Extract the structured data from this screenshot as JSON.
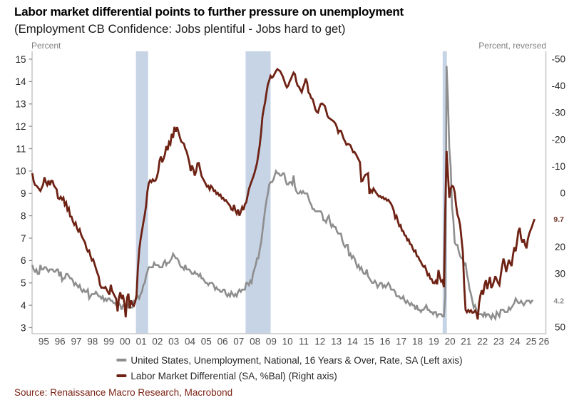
{
  "chart_data": {
    "type": "line",
    "title": "Labor market differential points to further pressure on unemployment",
    "subtitle": "(Employment CB Confidence: Jobs plentiful - Jobs hard to get)",
    "source": "Source: Renaissance Macro Research, Macrobond",
    "background_color": "#ffffff",
    "x_axis": {
      "min": 1994.78,
      "max": 2026.4,
      "label_years": [
        1995,
        1996,
        1997,
        1998,
        1999,
        2000,
        2001,
        2002,
        2003,
        2004,
        2005,
        2006,
        2007,
        2008,
        2009,
        2010,
        2011,
        2012,
        2013,
        2014,
        2015,
        2016,
        2017,
        2018,
        2019,
        2020,
        2021,
        2022,
        2023,
        2024,
        2025,
        2026
      ],
      "year_label_format": "YY",
      "label_color": "#4d4d4d"
    },
    "left_axis": {
      "title": "Percent",
      "min": 2.729,
      "max": 15.351,
      "ticks": [
        3,
        4,
        5,
        6,
        7,
        8,
        9,
        10,
        11,
        12,
        13,
        14,
        15
      ],
      "label_color": "#262626"
    },
    "right_axis": {
      "title": "Percent, reversed",
      "reversed": true,
      "min": -52.84,
      "max": 52.42,
      "ticks": [
        -50,
        -40,
        -30,
        -20,
        -10,
        0,
        20,
        30,
        50
      ],
      "label_color": "#262626"
    },
    "axis_unit_label_color": "#7f7f7f",
    "spine_color": "#c9c9c9",
    "tick_mark_color": "#8c8c8c",
    "recession_bands": [
      {
        "from": 2001.17,
        "to": 2001.92
      },
      {
        "from": 2007.92,
        "to": 2009.46
      },
      {
        "from": 2020.05,
        "to": 2020.31
      }
    ],
    "band_color": "#c6d4e6",
    "series": [
      {
        "name": "United States, Unemployment, National, 16 Years & Over, Rate, SA (Left axis)",
        "axis": "left",
        "color": "#8e8e8e",
        "line_width": 2.6,
        "start_year": 1994,
        "start_month": 10,
        "frequency": "monthly",
        "values": [
          5.8,
          5.6,
          5.5,
          5.6,
          5.4,
          5.4,
          5.8,
          5.6,
          5.6,
          5.7,
          5.7,
          5.6,
          5.5,
          5.6,
          5.6,
          5.6,
          5.5,
          5.5,
          5.6,
          5.6,
          5.3,
          5.5,
          5.1,
          5.2,
          5.2,
          5.4,
          5.4,
          5.3,
          5.2,
          5.2,
          5.1,
          4.9,
          5,
          4.9,
          4.8,
          4.9,
          4.7,
          4.6,
          4.7,
          4.6,
          4.6,
          4.7,
          4.3,
          4.4,
          4.5,
          4.5,
          4.5,
          4.6,
          4.5,
          4.4,
          4.4,
          4.3,
          4.4,
          4.2,
          4.3,
          4.2,
          4.3,
          4.3,
          4.2,
          4.2,
          4.1,
          4.1,
          4,
          4,
          4.1,
          4,
          3.8,
          4,
          4,
          4,
          4.1,
          3.9,
          3.9,
          3.9,
          3.9,
          4.2,
          4.2,
          4.3,
          4.4,
          4.3,
          4.5,
          4.6,
          4.9,
          5,
          5.3,
          5.5,
          5.7,
          5.7,
          5.7,
          5.7,
          5.9,
          5.8,
          5.8,
          5.8,
          5.7,
          5.7,
          5.7,
          5.9,
          6,
          5.8,
          5.9,
          5.9,
          6,
          6.1,
          6.3,
          6.2,
          6.1,
          6.1,
          6,
          5.8,
          5.7,
          5.7,
          5.6,
          5.8,
          5.6,
          5.6,
          5.6,
          5.5,
          5.4,
          5.4,
          5.5,
          5.4,
          5.4,
          5.3,
          5.4,
          5.2,
          5.2,
          5.1,
          5,
          5,
          4.9,
          5,
          5,
          5,
          4.9,
          4.7,
          4.8,
          4.7,
          4.7,
          4.6,
          4.6,
          4.7,
          4.7,
          4.5,
          4.4,
          4.5,
          4.4,
          4.6,
          4.5,
          4.4,
          4.5,
          4.4,
          4.6,
          4.7,
          4.6,
          4.7,
          4.7,
          4.7,
          5,
          5,
          4.9,
          5.1,
          5,
          5.4,
          5.6,
          5.8,
          6.1,
          6.1,
          6.5,
          6.8,
          7.3,
          7.8,
          8.3,
          8.7,
          9,
          9.4,
          9.5,
          9.5,
          9.6,
          9.8,
          10,
          9.9,
          9.9,
          9.8,
          9.8,
          9.9,
          9.9,
          9.6,
          9.4,
          9.4,
          9.5,
          9.5,
          9.4,
          9.8,
          9.3,
          9.1,
          9,
          9,
          9.1,
          9,
          9.1,
          9,
          9,
          9,
          8.8,
          8.6,
          8.5,
          8.3,
          8.3,
          8.2,
          8.2,
          8.2,
          8.2,
          8.2,
          8.1,
          7.8,
          7.8,
          7.7,
          7.9,
          8,
          7.7,
          7.5,
          7.6,
          7.5,
          7.5,
          7.3,
          7.2,
          7.2,
          7.2,
          6.9,
          6.7,
          6.6,
          6.7,
          6.7,
          6.2,
          6.3,
          6.1,
          6.2,
          6.1,
          5.9,
          5.7,
          5.8,
          5.6,
          5.7,
          5.5,
          5.4,
          5.4,
          5.6,
          5.3,
          5.2,
          5.1,
          5,
          5,
          5.1,
          5,
          4.8,
          4.9,
          5,
          5,
          4.8,
          4.9,
          4.8,
          4.9,
          5,
          4.9,
          4.7,
          4.7,
          4.7,
          4.6,
          4.4,
          4.4,
          4.4,
          4.3,
          4.3,
          4.4,
          4.2,
          4.1,
          4.2,
          4.1,
          4,
          4.1,
          4,
          4,
          3.8,
          4,
          3.8,
          3.8,
          3.7,
          3.8,
          3.8,
          3.9,
          4,
          3.8,
          3.8,
          3.7,
          3.7,
          3.6,
          3.7,
          3.7,
          3.5,
          3.6,
          3.6,
          3.6,
          3.5,
          3.5,
          4.4,
          14.7,
          13.2,
          11,
          10.2,
          8.4,
          7.8,
          6.8,
          6.7,
          6.7,
          6.4,
          6.2,
          6.1,
          6.1,
          5.8,
          5.9,
          5.4,
          5.1,
          4.7,
          4.5,
          4.2,
          3.9,
          4,
          3.8,
          3.6,
          3.6,
          3.6,
          3.6,
          3.5,
          3.7,
          3.5,
          3.6,
          3.6,
          3.5,
          3.4,
          3.6,
          3.5,
          3.4,
          3.7,
          3.6,
          3.5,
          3.8,
          3.8,
          3.8,
          3.7,
          3.7,
          3.7,
          3.9,
          3.8,
          3.9,
          4,
          4.1,
          4.3,
          4.2,
          4.1,
          4.1,
          4.2,
          4.1,
          4,
          4.1,
          4.2,
          4.2,
          4.2,
          4.1,
          4.2,
          4.2
        ]
      },
      {
        "name": "Labor Market Differential (SA, %Bal) (Right axis)",
        "axis": "right",
        "color": "#6e2214",
        "line_width": 2.8,
        "start_year": 1994,
        "start_month": 10,
        "frequency": "monthly",
        "values": [
          -7.4,
          -4.5,
          -3,
          -2.8,
          -2.2,
          -1.5,
          -0.8,
          -2,
          -3.2,
          -5.9,
          -4.1,
          -3,
          -4.7,
          -2.9,
          -4.6,
          -4.5,
          -2.8,
          -2.1,
          -1.4,
          1.9,
          2.2,
          1.4,
          2.4,
          1.7,
          4.4,
          3.5,
          6.4,
          5.6,
          8.7,
          8.8,
          10.6,
          11.8,
          11.0,
          13.1,
          14.3,
          13.5,
          15.4,
          16.6,
          17.5,
          18.5,
          20.6,
          21.8,
          21.4,
          23.5,
          25.1,
          24.7,
          26.4,
          28.1,
          29.7,
          31.0,
          34.2,
          35.3,
          35.2,
          35.4,
          35,
          36,
          37,
          37.9,
          34.2,
          36.5,
          37.5,
          38.5,
          39.5,
          44.1,
          39,
          37,
          39.5,
          38,
          41,
          46.3,
          39,
          37.5,
          43,
          40,
          41.5,
          42,
          40.5,
          38,
          28,
          21.1,
          17.2,
          14.1,
          11.1,
          8.3,
          4.9,
          -0.5,
          -3.6,
          -4.7,
          -4.1,
          -5.1,
          -4.5,
          -4.7,
          -5.9,
          -8,
          -12.1,
          -13.6,
          -11.5,
          -12.8,
          -14.5,
          -17.5,
          -16,
          -19,
          -18.2,
          -22.1,
          -20.6,
          -24.7,
          -22.9,
          -24.6,
          -22.7,
          -20.8,
          -19.2,
          -18.8,
          -18.4,
          -16.6,
          -15.5,
          -13.6,
          -11.4,
          -8.2,
          -10.3,
          -8.8,
          -6.5,
          -8.1,
          -11.1,
          -11.2,
          -8.8,
          -6.4,
          -5.4,
          -4.5,
          -3.5,
          -2.4,
          -2.7,
          -1.3,
          -2.7,
          -2.1,
          -0.8,
          -1,
          0.3,
          -0.1,
          0.9,
          0.6,
          2,
          1.8,
          2.8,
          2.6,
          3.4,
          4.1,
          4.7,
          6.1,
          6.4,
          4.4,
          6.5,
          7.7,
          6.1,
          8.4,
          7,
          5.2,
          6.3,
          4.2,
          3.5,
          1,
          -1.5,
          -3,
          -4.4,
          -5.8,
          -7.3,
          -9.2,
          -11.2,
          -14.5,
          -17.9,
          -22.5,
          -28.5,
          -31.5,
          -34.0,
          -37.5,
          -40.5,
          -42,
          -43.7,
          -43,
          -43.5,
          -44.5,
          -45.5,
          -46.2,
          -45.8,
          -45.5,
          -44.5,
          -43.5,
          -42,
          -40.5,
          -39.4,
          -40,
          -41.5,
          -42.5,
          -43.8,
          -44.9,
          -44.3,
          -41.6,
          -40,
          -39.6,
          -38.5,
          -37.6,
          -39.4,
          -40.8,
          -42.7,
          -41.1,
          -37.5,
          -36.9,
          -35.4,
          -35.1,
          -33.4,
          -31.3,
          -30.3,
          -30,
          -31.8,
          -33.2,
          -33.4,
          -33,
          -32.5,
          -30.8,
          -28.8,
          -28,
          -27.7,
          -27.3,
          -27,
          -26.5,
          -25.8,
          -24.5,
          -22.5,
          -23.3,
          -23.2,
          -21.8,
          -20.2,
          -19.3,
          -18,
          -18.3,
          -18.2,
          -17.8,
          -16.5,
          -15.2,
          -15.3,
          -14.5,
          -13.5,
          -12.5,
          -11.5,
          -4.4,
          -4.6,
          -5.9,
          -6.8,
          -7,
          -7.4,
          0.3,
          -1.1,
          -0.3,
          -1.7,
          -0.9,
          -0.1,
          0.6,
          1.3,
          1.1,
          1.8,
          1.5,
          2.3,
          2,
          2.8,
          2.5,
          3.3,
          4,
          5.1,
          6.6,
          9.3,
          8.5,
          10.4,
          12.3,
          11.9,
          14,
          14.2,
          15.7,
          16,
          17.6,
          17.3,
          19,
          19.2,
          20.7,
          21.8,
          21.4,
          23.5,
          23.7,
          24.9,
          25.6,
          26.8,
          27.5,
          27.2,
          28.7,
          30.6,
          30.2,
          32,
          32.1,
          33.5,
          33.6,
          32.7,
          34,
          28.7,
          31.3,
          33,
          32.5,
          35.1,
          7,
          -15.7,
          -7,
          1.8,
          -1.8,
          -2.7,
          -2.4,
          -0.3,
          4.5,
          8,
          9.5,
          12,
          17,
          22,
          34.6,
          43.5,
          44.4,
          43.6,
          44.3,
          43.7,
          44.6,
          44.5,
          43.8,
          44.7,
          47.1,
          41.0,
          38.0,
          36.2,
          37.9,
          34.2,
          32.5,
          35.8,
          33.5,
          31.3,
          35.4,
          34.5,
          32.8,
          31.0,
          32.2,
          33.5,
          34.3,
          30.5,
          27.2,
          24.4,
          26.3,
          29.4,
          27.2,
          24.9,
          26.2,
          27.2,
          23.2,
          20.2,
          21.7,
          18.2,
          14.2,
          13.0,
          16.8,
          18.5,
          17.2,
          19.3,
          20.6,
          17.2,
          15.2,
          13.8,
          12.6,
          11.0,
          9.7
        ]
      }
    ],
    "end_labels": [
      {
        "text": "9.7",
        "axis": "right",
        "value": 9.7,
        "color": "#70352a"
      },
      {
        "text": "4.2",
        "axis": "left",
        "value": 4.2,
        "color": "#8c8c8c"
      }
    ],
    "legend": {
      "text_color": "#262626",
      "items": [
        {
          "label": "United States, Unemployment, National, 16 Years & Over, Rate, SA (Left axis)",
          "color": "#8e8e8e"
        },
        {
          "label": "Labor Market Differential (SA, %Bal) (Right axis)",
          "color": "#6e2214"
        }
      ]
    },
    "source_color": "#7b2315"
  }
}
